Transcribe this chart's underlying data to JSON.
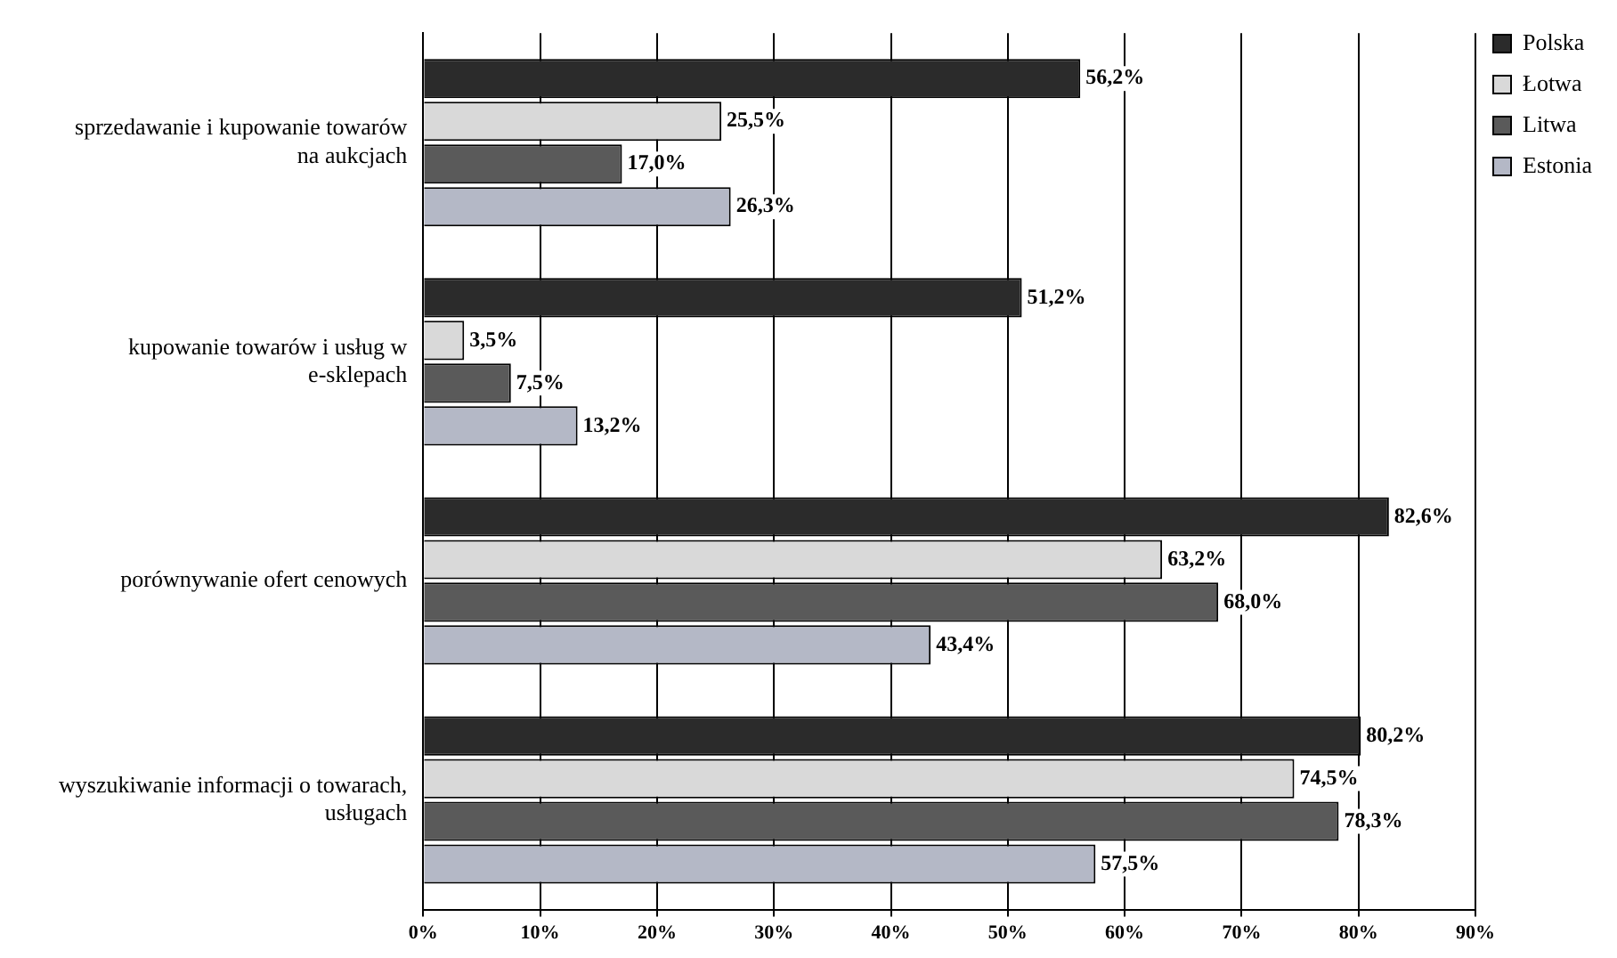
{
  "chart_data": {
    "type": "bar",
    "orientation": "horizontal",
    "categories": [
      "sprzedawanie i kupowanie towarów na aukcjach",
      "kupowanie towarów i usług w e-sklepach",
      "porównywanie ofert cenowych",
      "wyszukiwanie informacji o towarach, usługach"
    ],
    "series": [
      {
        "name": "Polska",
        "color": "#2b2b2b",
        "values": [
          56.2,
          51.2,
          82.6,
          80.2
        ],
        "value_labels": [
          "56,2%",
          "51,2%",
          "82,6%",
          "80,2%"
        ]
      },
      {
        "name": "Łotwa",
        "color": "#d9d9d9",
        "values": [
          25.5,
          3.5,
          63.2,
          74.5
        ],
        "value_labels": [
          "25,5%",
          "3,5%",
          "63,2%",
          "74,5%"
        ]
      },
      {
        "name": "Litwa",
        "color": "#5a5a5a",
        "values": [
          17.0,
          7.5,
          68.0,
          78.3
        ],
        "value_labels": [
          "17,0%",
          "7,5%",
          "68,0%",
          "78,3%"
        ]
      },
      {
        "name": "Estonia",
        "color": "#b4b8c6",
        "values": [
          26.3,
          13.2,
          43.4,
          57.5
        ],
        "value_labels": [
          "26,3%",
          "13,2%",
          "43,4%",
          "57,5%"
        ]
      }
    ],
    "xlim": [
      0,
      90
    ],
    "xticks": [
      {
        "value": 0,
        "label": "0%"
      },
      {
        "value": 10,
        "label": "10%"
      },
      {
        "value": 20,
        "label": "20%"
      },
      {
        "value": 30,
        "label": "30%"
      },
      {
        "value": 40,
        "label": "40%"
      },
      {
        "value": 50,
        "label": "50%"
      },
      {
        "value": 60,
        "label": "60%"
      },
      {
        "value": 70,
        "label": "70%"
      },
      {
        "value": 80,
        "label": "80%"
      },
      {
        "value": 90,
        "label": "90%"
      }
    ],
    "grid": "x",
    "legend": "top right"
  }
}
